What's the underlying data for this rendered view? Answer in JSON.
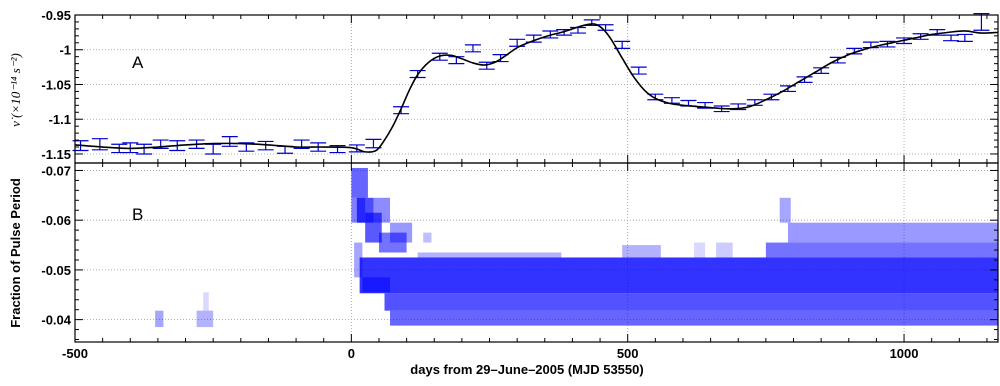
{
  "chart_data": [
    {
      "type": "line",
      "panel_label": "A",
      "ylabel": "ν̇ (×10⁻¹⁴ s⁻²)",
      "xlim": [
        -500,
        1170
      ],
      "ylim": [
        -1.163,
        -0.95
      ],
      "yticks": [
        -1.15,
        -1.1,
        -1.05,
        -1.0,
        -0.95
      ],
      "ytick_labels": [
        "-1.15",
        "-1.1",
        "-1.05",
        "-1",
        "-0.95"
      ],
      "grid": true,
      "line_color": "#000000",
      "errorbar_color": "#0000cc",
      "model_curve": {
        "x": [
          -500,
          -450,
          -400,
          -350,
          -300,
          -250,
          -200,
          -150,
          -100,
          -50,
          0,
          25,
          45,
          60,
          75,
          90,
          105,
          120,
          140,
          160,
          180,
          200,
          220,
          240,
          260,
          280,
          300,
          320,
          340,
          360,
          380,
          400,
          420,
          440,
          455,
          470,
          490,
          510,
          530,
          550,
          575,
          600,
          630,
          660,
          690,
          720,
          750,
          780,
          810,
          840,
          870,
          900,
          930,
          960,
          990,
          1020,
          1050,
          1080,
          1110,
          1140,
          1170
        ],
        "y": [
          -1.137,
          -1.14,
          -1.142,
          -1.14,
          -1.137,
          -1.135,
          -1.135,
          -1.137,
          -1.14,
          -1.14,
          -1.141,
          -1.147,
          -1.145,
          -1.13,
          -1.11,
          -1.085,
          -1.058,
          -1.036,
          -1.018,
          -1.009,
          -1.008,
          -1.013,
          -1.019,
          -1.022,
          -1.018,
          -1.008,
          -0.997,
          -0.99,
          -0.984,
          -0.979,
          -0.975,
          -0.97,
          -0.965,
          -0.963,
          -0.97,
          -0.985,
          -1.012,
          -1.038,
          -1.058,
          -1.07,
          -1.077,
          -1.08,
          -1.082,
          -1.084,
          -1.085,
          -1.082,
          -1.072,
          -1.06,
          -1.046,
          -1.032,
          -1.018,
          -1.007,
          -0.999,
          -0.993,
          -0.988,
          -0.983,
          -0.978,
          -0.975,
          -0.973,
          -0.976,
          -0.975
        ]
      },
      "error_bars": [
        {
          "x": -490,
          "y": -1.138,
          "err": 0.007
        },
        {
          "x": -455,
          "y": -1.136,
          "err": 0.008
        },
        {
          "x": -420,
          "y": -1.142,
          "err": 0.006
        },
        {
          "x": -400,
          "y": -1.141,
          "err": 0.007
        },
        {
          "x": -375,
          "y": -1.143,
          "err": 0.007
        },
        {
          "x": -345,
          "y": -1.136,
          "err": 0.006
        },
        {
          "x": -315,
          "y": -1.138,
          "err": 0.007
        },
        {
          "x": -280,
          "y": -1.136,
          "err": 0.006
        },
        {
          "x": -250,
          "y": -1.143,
          "err": 0.007
        },
        {
          "x": -220,
          "y": -1.132,
          "err": 0.007
        },
        {
          "x": -190,
          "y": -1.14,
          "err": 0.006
        },
        {
          "x": -155,
          "y": -1.138,
          "err": 0.006
        },
        {
          "x": -120,
          "y": -1.144,
          "err": 0.005
        },
        {
          "x": -90,
          "y": -1.136,
          "err": 0.006
        },
        {
          "x": -60,
          "y": -1.14,
          "err": 0.006
        },
        {
          "x": -25,
          "y": -1.143,
          "err": 0.005
        },
        {
          "x": 10,
          "y": -1.142,
          "err": 0.005
        },
        {
          "x": 40,
          "y": -1.135,
          "err": 0.006
        },
        {
          "x": 90,
          "y": -1.087,
          "err": 0.005
        },
        {
          "x": 120,
          "y": -1.035,
          "err": 0.005
        },
        {
          "x": 160,
          "y": -1.01,
          "err": 0.005
        },
        {
          "x": 190,
          "y": -1.015,
          "err": 0.005
        },
        {
          "x": 220,
          "y": -0.998,
          "err": 0.005
        },
        {
          "x": 245,
          "y": -1.023,
          "err": 0.005
        },
        {
          "x": 270,
          "y": -1.012,
          "err": 0.005
        },
        {
          "x": 300,
          "y": -0.99,
          "err": 0.005
        },
        {
          "x": 330,
          "y": -0.984,
          "err": 0.005
        },
        {
          "x": 360,
          "y": -0.978,
          "err": 0.005
        },
        {
          "x": 385,
          "y": -0.975,
          "err": 0.004
        },
        {
          "x": 410,
          "y": -0.972,
          "err": 0.004
        },
        {
          "x": 435,
          "y": -0.961,
          "err": 0.004
        },
        {
          "x": 460,
          "y": -0.968,
          "err": 0.004
        },
        {
          "x": 490,
          "y": -0.993,
          "err": 0.005
        },
        {
          "x": 520,
          "y": -1.03,
          "err": 0.005
        },
        {
          "x": 550,
          "y": -1.068,
          "err": 0.004
        },
        {
          "x": 580,
          "y": -1.073,
          "err": 0.004
        },
        {
          "x": 610,
          "y": -1.077,
          "err": 0.004
        },
        {
          "x": 640,
          "y": -1.08,
          "err": 0.004
        },
        {
          "x": 670,
          "y": -1.085,
          "err": 0.004
        },
        {
          "x": 700,
          "y": -1.082,
          "err": 0.004
        },
        {
          "x": 730,
          "y": -1.076,
          "err": 0.004
        },
        {
          "x": 760,
          "y": -1.068,
          "err": 0.004
        },
        {
          "x": 790,
          "y": -1.056,
          "err": 0.004
        },
        {
          "x": 820,
          "y": -1.043,
          "err": 0.004
        },
        {
          "x": 850,
          "y": -1.03,
          "err": 0.004
        },
        {
          "x": 880,
          "y": -1.015,
          "err": 0.004
        },
        {
          "x": 910,
          "y": -1.002,
          "err": 0.004
        },
        {
          "x": 940,
          "y": -0.993,
          "err": 0.004
        },
        {
          "x": 970,
          "y": -0.992,
          "err": 0.004
        },
        {
          "x": 1000,
          "y": -0.987,
          "err": 0.004
        },
        {
          "x": 1030,
          "y": -0.981,
          "err": 0.004
        },
        {
          "x": 1060,
          "y": -0.975,
          "err": 0.004
        },
        {
          "x": 1085,
          "y": -0.983,
          "err": 0.004
        },
        {
          "x": 1110,
          "y": -0.983,
          "err": 0.005
        },
        {
          "x": 1140,
          "y": -0.96,
          "err": 0.012
        }
      ]
    },
    {
      "type": "heatmap",
      "panel_label": "B",
      "ylabel": "Fraction of Pulse Period",
      "xlabel": "days from 29–June–2005 (MJD 53550)",
      "xlim": [
        -500,
        1170
      ],
      "ylim": [
        -0.0355,
        -0.0715
      ],
      "xticks": [
        -500,
        0,
        500,
        1000
      ],
      "xtick_labels": [
        "-500",
        "0",
        "500",
        "1000"
      ],
      "yticks": [
        -0.07,
        -0.06,
        -0.05,
        -0.04
      ],
      "ytick_labels": [
        "-0.07",
        "-0.06",
        "-0.05",
        "-0.04"
      ],
      "grid": true,
      "color": "#0000ff",
      "cells": [
        {
          "x0": -355,
          "x1": -340,
          "y0": -0.0385,
          "y1": -0.0418,
          "i": 0.35
        },
        {
          "x0": -280,
          "x1": -250,
          "y0": -0.0385,
          "y1": -0.0418,
          "i": 0.3
        },
        {
          "x0": -268,
          "x1": -258,
          "y0": -0.0418,
          "y1": -0.0455,
          "i": 0.15
        },
        {
          "x0": 0,
          "x1": 30,
          "y0": -0.0645,
          "y1": -0.0705,
          "i": 0.6
        },
        {
          "x0": 0,
          "x1": 25,
          "y0": -0.0595,
          "y1": -0.0645,
          "i": 0.5
        },
        {
          "x0": 10,
          "x1": 40,
          "y0": -0.0595,
          "y1": -0.0645,
          "i": 0.7
        },
        {
          "x0": 25,
          "x1": 55,
          "y0": -0.0555,
          "y1": -0.0615,
          "i": 0.65
        },
        {
          "x0": 40,
          "x1": 70,
          "y0": -0.0595,
          "y1": -0.0645,
          "i": 0.45
        },
        {
          "x0": 5,
          "x1": 20,
          "y0": -0.0485,
          "y1": -0.0555,
          "i": 0.35
        },
        {
          "x0": 50,
          "x1": 100,
          "y0": -0.0535,
          "y1": -0.0575,
          "i": 0.55
        },
        {
          "x0": 70,
          "x1": 110,
          "y0": -0.0555,
          "y1": -0.0595,
          "i": 0.4
        },
        {
          "x0": 130,
          "x1": 145,
          "y0": -0.0555,
          "y1": -0.0575,
          "i": 0.25
        },
        {
          "x0": 15,
          "x1": 1170,
          "y0": -0.0453,
          "y1": -0.0525,
          "i": 0.8
        },
        {
          "x0": 20,
          "x1": 70,
          "y0": -0.0455,
          "y1": -0.0485,
          "i": 0.5
        },
        {
          "x0": 60,
          "x1": 1170,
          "y0": -0.0418,
          "y1": -0.0453,
          "i": 0.68
        },
        {
          "x0": 70,
          "x1": 1170,
          "y0": -0.0388,
          "y1": -0.0418,
          "i": 0.6
        },
        {
          "x0": 120,
          "x1": 380,
          "y0": -0.0525,
          "y1": -0.0535,
          "i": 0.3
        },
        {
          "x0": 490,
          "x1": 560,
          "y0": -0.0525,
          "y1": -0.055,
          "i": 0.3
        },
        {
          "x0": 660,
          "x1": 690,
          "y0": -0.0525,
          "y1": -0.0555,
          "i": 0.2
        },
        {
          "x0": 750,
          "x1": 1170,
          "y0": -0.0525,
          "y1": -0.0555,
          "i": 0.55
        },
        {
          "x0": 790,
          "x1": 1170,
          "y0": -0.0555,
          "y1": -0.0595,
          "i": 0.4
        },
        {
          "x0": 775,
          "x1": 795,
          "y0": -0.0595,
          "y1": -0.0645,
          "i": 0.35
        },
        {
          "x0": 620,
          "x1": 640,
          "y0": -0.0525,
          "y1": -0.0555,
          "i": 0.15
        }
      ]
    }
  ]
}
